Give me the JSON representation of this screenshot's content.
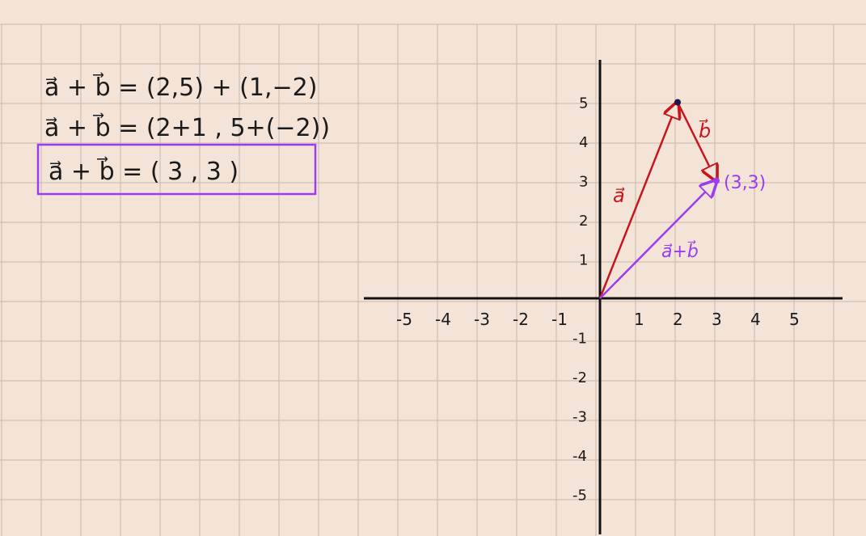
{
  "equations": {
    "line1": "a⃗ + b⃗ = (2,5) + (1,−2)",
    "line2": "a⃗ + b⃗ = (2+1 , 5+(−2))",
    "line3": "a⃗ + b⃗ = ( 3 , 3 )"
  },
  "axes": {
    "x_ticks": [
      "-5",
      "-4",
      "-3",
      "-2",
      "-1",
      "1",
      "2",
      "3",
      "4",
      "5"
    ],
    "y_ticks": [
      "5",
      "4",
      "3",
      "2",
      "1",
      "-1",
      "-2",
      "-3",
      "-4",
      "-5"
    ]
  },
  "vectors": {
    "a": {
      "label": "a⃗",
      "from": [
        0,
        0
      ],
      "to": [
        2,
        5
      ],
      "color": "#c8141c"
    },
    "b": {
      "label": "b⃗",
      "from": [
        2,
        5
      ],
      "to": [
        3,
        3
      ],
      "color": "#c8141c"
    },
    "sum": {
      "label": "a⃗+b⃗",
      "from": [
        0,
        0
      ],
      "to": [
        3,
        3
      ],
      "color": "#9a3df0"
    }
  },
  "point_label": "(3,3)",
  "colors": {
    "background": "#f4e4d8",
    "grid": "#c9b8ad",
    "red": "#c8141c",
    "purple": "#9a3df0",
    "box": "#9a3df0"
  }
}
